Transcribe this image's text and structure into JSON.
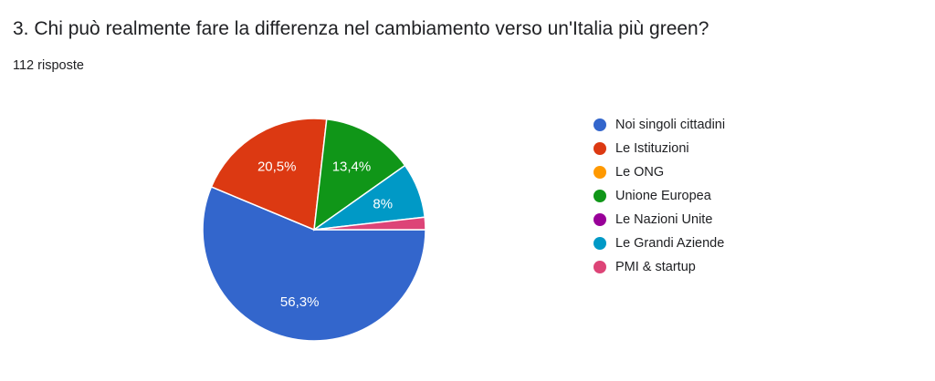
{
  "question": {
    "title": "3. Chi può realmente fare la differenza nel cambiamento verso un'Italia più green?",
    "responses": "112 risposte"
  },
  "chart_data": {
    "type": "pie",
    "title": "3. Chi può realmente fare la differenza nel cambiamento verso un'Italia più green?",
    "legend_position": "right",
    "slices": [
      {
        "name": "Noi singoli cittadini",
        "value": 56.3,
        "label": "56,3%",
        "color": "#3366cc"
      },
      {
        "name": "Le Istituzioni",
        "value": 20.5,
        "label": "20,5%",
        "color": "#dc3912"
      },
      {
        "name": "Le ONG",
        "value": 0,
        "label": "",
        "color": "#ff9900"
      },
      {
        "name": "Unione Europea",
        "value": 13.4,
        "label": "13,4%",
        "color": "#109618"
      },
      {
        "name": "Le Nazioni Unite",
        "value": 0,
        "label": "",
        "color": "#990099"
      },
      {
        "name": "Le Grandi Aziende",
        "value": 8,
        "label": "8%",
        "color": "#0099c6"
      },
      {
        "name": "PMI & startup",
        "value": 1.8,
        "label": "",
        "color": "#dd4477"
      }
    ]
  }
}
